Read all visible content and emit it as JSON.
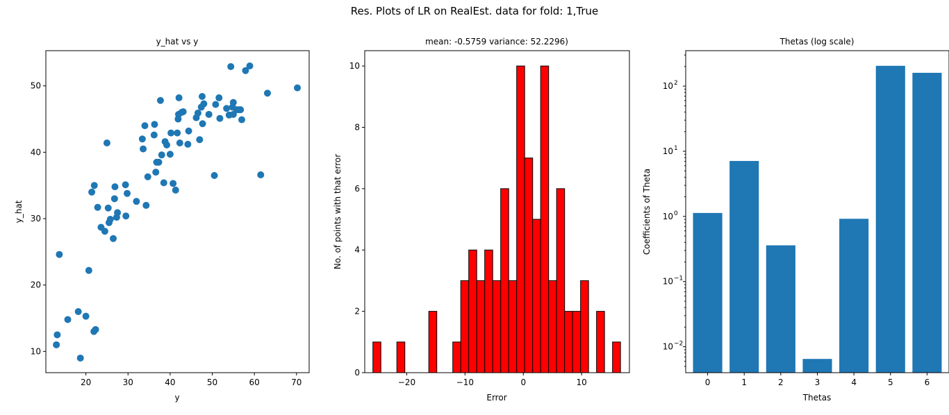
{
  "figure": {
    "suptitle": "Res. Plots of LR on RealEst. data for fold: 1,True",
    "point_color": "#1f77b4",
    "bar_color": "#1f77b4",
    "hist_color": "#ff0000",
    "hist_edge": "#000000"
  },
  "chart_data": [
    {
      "type": "scatter",
      "title": "y_hat vs y",
      "xlabel": "y",
      "ylabel": "y_hat",
      "xlim": [
        10.5,
        73
      ],
      "ylim": [
        6.8,
        55.3
      ],
      "xticks": [
        20,
        30,
        40,
        50,
        60,
        70
      ],
      "yticks": [
        10,
        20,
        30,
        40,
        50
      ],
      "points": [
        [
          13.2,
          12.5
        ],
        [
          13.0,
          11.0
        ],
        [
          13.7,
          24.6
        ],
        [
          15.7,
          14.8
        ],
        [
          18.2,
          16.0
        ],
        [
          18.7,
          9.0
        ],
        [
          20.0,
          15.3
        ],
        [
          20.7,
          22.2
        ],
        [
          21.9,
          13.0
        ],
        [
          22.3,
          13.3
        ],
        [
          21.4,
          34.0
        ],
        [
          22.0,
          35.0
        ],
        [
          22.8,
          31.7
        ],
        [
          23.6,
          28.7
        ],
        [
          24.5,
          28.1
        ],
        [
          25.0,
          41.4
        ],
        [
          25.3,
          31.6
        ],
        [
          25.5,
          29.4
        ],
        [
          25.8,
          29.9
        ],
        [
          26.5,
          27.0
        ],
        [
          26.9,
          34.8
        ],
        [
          26.8,
          33.0
        ],
        [
          27.3,
          30.2
        ],
        [
          27.5,
          30.9
        ],
        [
          29.4,
          35.1
        ],
        [
          29.5,
          30.4
        ],
        [
          29.8,
          33.8
        ],
        [
          32.0,
          32.6
        ],
        [
          33.4,
          42.0
        ],
        [
          33.6,
          40.5
        ],
        [
          34.0,
          44.0
        ],
        [
          34.3,
          32.0
        ],
        [
          34.7,
          36.3
        ],
        [
          36.2,
          42.6
        ],
        [
          36.3,
          44.2
        ],
        [
          36.6,
          37.0
        ],
        [
          36.8,
          38.5
        ],
        [
          37.3,
          38.5
        ],
        [
          37.7,
          47.8
        ],
        [
          38.0,
          39.6
        ],
        [
          38.5,
          35.4
        ],
        [
          38.8,
          41.6
        ],
        [
          39.2,
          41.1
        ],
        [
          40.0,
          39.7
        ],
        [
          40.2,
          42.9
        ],
        [
          40.7,
          35.3
        ],
        [
          41.3,
          34.3
        ],
        [
          41.7,
          42.9
        ],
        [
          41.9,
          45.0
        ],
        [
          42.0,
          45.7
        ],
        [
          42.1,
          48.2
        ],
        [
          42.3,
          41.4
        ],
        [
          42.7,
          46.0
        ],
        [
          43.1,
          46.1
        ],
        [
          44.2,
          41.2
        ],
        [
          44.4,
          43.2
        ],
        [
          46.2,
          45.2
        ],
        [
          46.6,
          45.9
        ],
        [
          47.0,
          41.9
        ],
        [
          47.4,
          46.8
        ],
        [
          47.6,
          48.4
        ],
        [
          47.7,
          44.3
        ],
        [
          48.0,
          47.3
        ],
        [
          49.2,
          45.7
        ],
        [
          50.5,
          36.5
        ],
        [
          50.8,
          47.2
        ],
        [
          51.6,
          48.2
        ],
        [
          51.8,
          45.1
        ],
        [
          53.4,
          46.6
        ],
        [
          54.0,
          45.6
        ],
        [
          54.4,
          52.9
        ],
        [
          54.8,
          46.8
        ],
        [
          55.0,
          47.5
        ],
        [
          55.0,
          45.7
        ],
        [
          55.8,
          46.4
        ],
        [
          56.3,
          46.4
        ],
        [
          56.7,
          46.4
        ],
        [
          57.0,
          44.9
        ],
        [
          57.9,
          52.3
        ],
        [
          58.9,
          53.0
        ],
        [
          61.5,
          36.6
        ],
        [
          63.1,
          48.9
        ],
        [
          70.2,
          49.7
        ]
      ]
    },
    {
      "type": "bar",
      "title": "mean: -0.5759 variance: 52.2296)",
      "xlabel": "Error",
      "ylabel": "No. of points with that error",
      "xlim": [
        -27.2,
        18.2
      ],
      "ylim": [
        0,
        10.5
      ],
      "xticks": [
        -20,
        -10,
        0,
        10
      ],
      "yticks": [
        0,
        2,
        4,
        6,
        8,
        10
      ],
      "bin_start": -25.8,
      "bin_width": 1.37,
      "values": [
        1,
        0,
        0,
        1,
        0,
        0,
        0,
        2,
        0,
        0,
        1,
        3,
        4,
        3,
        4,
        3,
        6,
        3,
        10,
        7,
        5,
        10,
        3,
        6,
        2,
        2,
        3,
        0,
        2,
        0,
        1
      ]
    },
    {
      "type": "bar",
      "title": "Thetas (log scale)",
      "xlabel": "Thetas",
      "ylabel": "Coefficients of Theta",
      "yscale": "log",
      "ylim": [
        0.004,
        350
      ],
      "categories": [
        "0",
        "1",
        "2",
        "3",
        "4",
        "5",
        "6"
      ],
      "values": [
        1.13,
        7.1,
        0.36,
        0.0065,
        0.92,
        205,
        160
      ],
      "yticks": [
        -2,
        -1,
        0,
        1,
        2
      ]
    }
  ]
}
